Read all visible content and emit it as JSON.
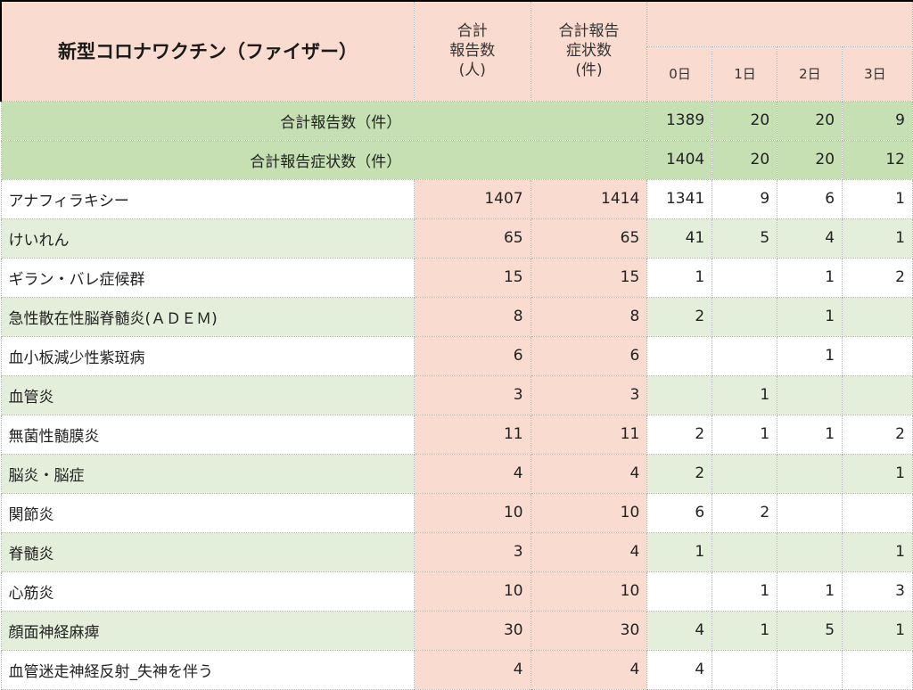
{
  "header": {
    "title": "新型コロナワクチン（ファイザー）",
    "col_reports": "合計\n報告数\n(人)",
    "col_symptoms": "合計報告\n症状数\n(件)",
    "days": [
      "0日",
      "1日",
      "2日",
      "3日"
    ]
  },
  "summary": [
    {
      "label": "合計報告数（件）",
      "values": [
        "1389",
        "20",
        "20",
        "9"
      ]
    },
    {
      "label": "合計報告症状数（件）",
      "values": [
        "1404",
        "20",
        "20",
        "12"
      ]
    }
  ],
  "rows": [
    {
      "name": "アナフィラキシー",
      "reports": "1407",
      "symptoms": "1414",
      "days": [
        "1341",
        "9",
        "6",
        "1"
      ]
    },
    {
      "name": "けいれん",
      "reports": "65",
      "symptoms": "65",
      "days": [
        "41",
        "5",
        "4",
        "1"
      ]
    },
    {
      "name": "ギラン・バレ症候群",
      "reports": "15",
      "symptoms": "15",
      "days": [
        "1",
        "",
        "1",
        "2"
      ]
    },
    {
      "name": "急性散在性脳脊髄炎(ＡＤＥＭ)",
      "reports": "8",
      "symptoms": "8",
      "days": [
        "2",
        "",
        "1",
        ""
      ]
    },
    {
      "name": "血小板減少性紫斑病",
      "reports": "6",
      "symptoms": "6",
      "days": [
        "",
        "",
        "1",
        ""
      ]
    },
    {
      "name": "血管炎",
      "reports": "3",
      "symptoms": "3",
      "days": [
        "",
        "1",
        "",
        ""
      ]
    },
    {
      "name": "無菌性髄膜炎",
      "reports": "11",
      "symptoms": "11",
      "days": [
        "2",
        "1",
        "1",
        "2"
      ]
    },
    {
      "name": "脳炎・脳症",
      "reports": "4",
      "symptoms": "4",
      "days": [
        "2",
        "",
        "",
        "1"
      ]
    },
    {
      "name": "関節炎",
      "reports": "10",
      "symptoms": "10",
      "days": [
        "6",
        "2",
        "",
        ""
      ]
    },
    {
      "name": "脊髄炎",
      "reports": "3",
      "symptoms": "4",
      "days": [
        "1",
        "",
        "",
        "1"
      ]
    },
    {
      "name": "心筋炎",
      "reports": "10",
      "symptoms": "10",
      "days": [
        "",
        "1",
        "1",
        "3"
      ]
    },
    {
      "name": "顔面神経麻痺",
      "reports": "30",
      "symptoms": "30",
      "days": [
        "4",
        "1",
        "5",
        "1"
      ]
    },
    {
      "name": "血管迷走神経反射_失神を伴う",
      "reports": "4",
      "symptoms": "4",
      "days": [
        "4",
        "",
        "",
        ""
      ]
    }
  ]
}
